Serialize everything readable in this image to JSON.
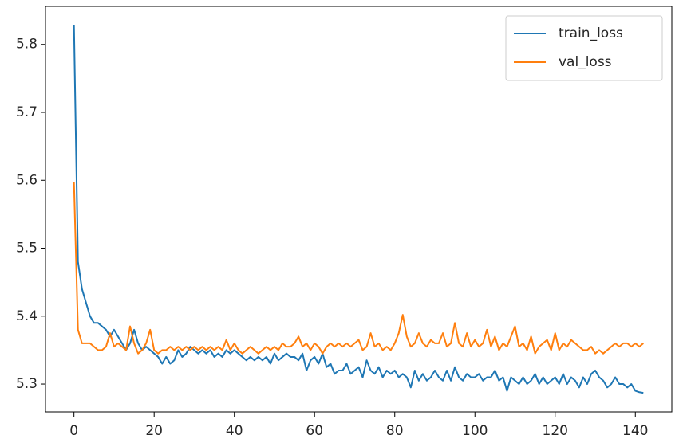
{
  "chart_data": {
    "type": "line",
    "x": [
      0,
      1,
      2,
      3,
      4,
      5,
      6,
      7,
      8,
      9,
      10,
      11,
      12,
      13,
      14,
      15,
      16,
      17,
      18,
      19,
      20,
      21,
      22,
      23,
      24,
      25,
      26,
      27,
      28,
      29,
      30,
      31,
      32,
      33,
      34,
      35,
      36,
      37,
      38,
      39,
      40,
      41,
      42,
      43,
      44,
      45,
      46,
      47,
      48,
      49,
      50,
      51,
      52,
      53,
      54,
      55,
      56,
      57,
      58,
      59,
      60,
      61,
      62,
      63,
      64,
      65,
      66,
      67,
      68,
      69,
      70,
      71,
      72,
      73,
      74,
      75,
      76,
      77,
      78,
      79,
      80,
      81,
      82,
      83,
      84,
      85,
      86,
      87,
      88,
      89,
      90,
      91,
      92,
      93,
      94,
      95,
      96,
      97,
      98,
      99,
      100,
      101,
      102,
      103,
      104,
      105,
      106,
      107,
      108,
      109,
      110,
      111,
      112,
      113,
      114,
      115,
      116,
      117,
      118,
      119,
      120,
      121,
      122,
      123,
      124,
      125,
      126,
      127,
      128,
      129,
      130,
      131,
      132,
      133,
      134,
      135,
      136,
      137,
      138,
      139,
      140,
      141,
      142
    ],
    "series": [
      {
        "name": "train_loss",
        "color": "#1f77b4",
        "values": [
          5.829,
          5.48,
          5.44,
          5.42,
          5.4,
          5.39,
          5.39,
          5.385,
          5.38,
          5.37,
          5.38,
          5.37,
          5.36,
          5.35,
          5.36,
          5.38,
          5.36,
          5.35,
          5.355,
          5.35,
          5.345,
          5.34,
          5.33,
          5.34,
          5.33,
          5.335,
          5.35,
          5.34,
          5.345,
          5.355,
          5.35,
          5.345,
          5.35,
          5.345,
          5.35,
          5.34,
          5.345,
          5.34,
          5.35,
          5.345,
          5.35,
          5.345,
          5.34,
          5.335,
          5.34,
          5.335,
          5.34,
          5.335,
          5.34,
          5.33,
          5.345,
          5.335,
          5.34,
          5.345,
          5.34,
          5.34,
          5.335,
          5.345,
          5.32,
          5.335,
          5.34,
          5.33,
          5.345,
          5.325,
          5.33,
          5.315,
          5.32,
          5.32,
          5.33,
          5.315,
          5.32,
          5.325,
          5.31,
          5.335,
          5.32,
          5.315,
          5.325,
          5.31,
          5.32,
          5.315,
          5.32,
          5.31,
          5.315,
          5.31,
          5.295,
          5.32,
          5.305,
          5.315,
          5.305,
          5.31,
          5.32,
          5.31,
          5.305,
          5.32,
          5.305,
          5.325,
          5.31,
          5.305,
          5.315,
          5.31,
          5.31,
          5.315,
          5.305,
          5.31,
          5.31,
          5.32,
          5.305,
          5.31,
          5.29,
          5.31,
          5.305,
          5.3,
          5.31,
          5.3,
          5.305,
          5.315,
          5.3,
          5.31,
          5.3,
          5.305,
          5.31,
          5.3,
          5.315,
          5.3,
          5.31,
          5.305,
          5.295,
          5.31,
          5.3,
          5.315,
          5.32,
          5.31,
          5.305,
          5.295,
          5.3,
          5.31,
          5.3,
          5.3,
          5.295,
          5.3,
          5.29,
          5.288,
          5.287
        ]
      },
      {
        "name": "val_loss",
        "color": "#ff7f0e",
        "values": [
          5.597,
          5.38,
          5.36,
          5.36,
          5.36,
          5.355,
          5.35,
          5.35,
          5.355,
          5.375,
          5.355,
          5.36,
          5.355,
          5.35,
          5.385,
          5.36,
          5.345,
          5.35,
          5.36,
          5.38,
          5.35,
          5.345,
          5.35,
          5.35,
          5.355,
          5.35,
          5.355,
          5.35,
          5.355,
          5.35,
          5.355,
          5.35,
          5.355,
          5.35,
          5.355,
          5.35,
          5.355,
          5.35,
          5.365,
          5.35,
          5.36,
          5.35,
          5.345,
          5.35,
          5.355,
          5.35,
          5.345,
          5.35,
          5.355,
          5.35,
          5.355,
          5.35,
          5.36,
          5.355,
          5.355,
          5.36,
          5.37,
          5.355,
          5.36,
          5.35,
          5.36,
          5.355,
          5.345,
          5.355,
          5.36,
          5.355,
          5.36,
          5.355,
          5.36,
          5.355,
          5.36,
          5.365,
          5.35,
          5.355,
          5.375,
          5.355,
          5.36,
          5.35,
          5.355,
          5.35,
          5.36,
          5.375,
          5.402,
          5.37,
          5.355,
          5.36,
          5.375,
          5.36,
          5.355,
          5.365,
          5.36,
          5.36,
          5.375,
          5.355,
          5.36,
          5.39,
          5.36,
          5.355,
          5.375,
          5.355,
          5.365,
          5.355,
          5.36,
          5.38,
          5.355,
          5.37,
          5.35,
          5.36,
          5.355,
          5.37,
          5.385,
          5.355,
          5.36,
          5.35,
          5.37,
          5.345,
          5.355,
          5.36,
          5.365,
          5.35,
          5.375,
          5.35,
          5.36,
          5.355,
          5.365,
          5.36,
          5.355,
          5.35,
          5.35,
          5.355,
          5.345,
          5.35,
          5.345,
          5.35,
          5.355,
          5.36,
          5.355,
          5.36,
          5.36,
          5.355,
          5.36,
          5.355,
          5.36
        ]
      }
    ],
    "xlim": [
      -7.1,
      149.1
    ],
    "ylim": [
      5.259,
      5.856
    ],
    "xticks": [
      0,
      20,
      40,
      60,
      80,
      100,
      120,
      140
    ],
    "yticks": [
      5.3,
      5.4,
      5.5,
      5.6,
      5.7,
      5.8
    ],
    "legend": "upper right"
  }
}
